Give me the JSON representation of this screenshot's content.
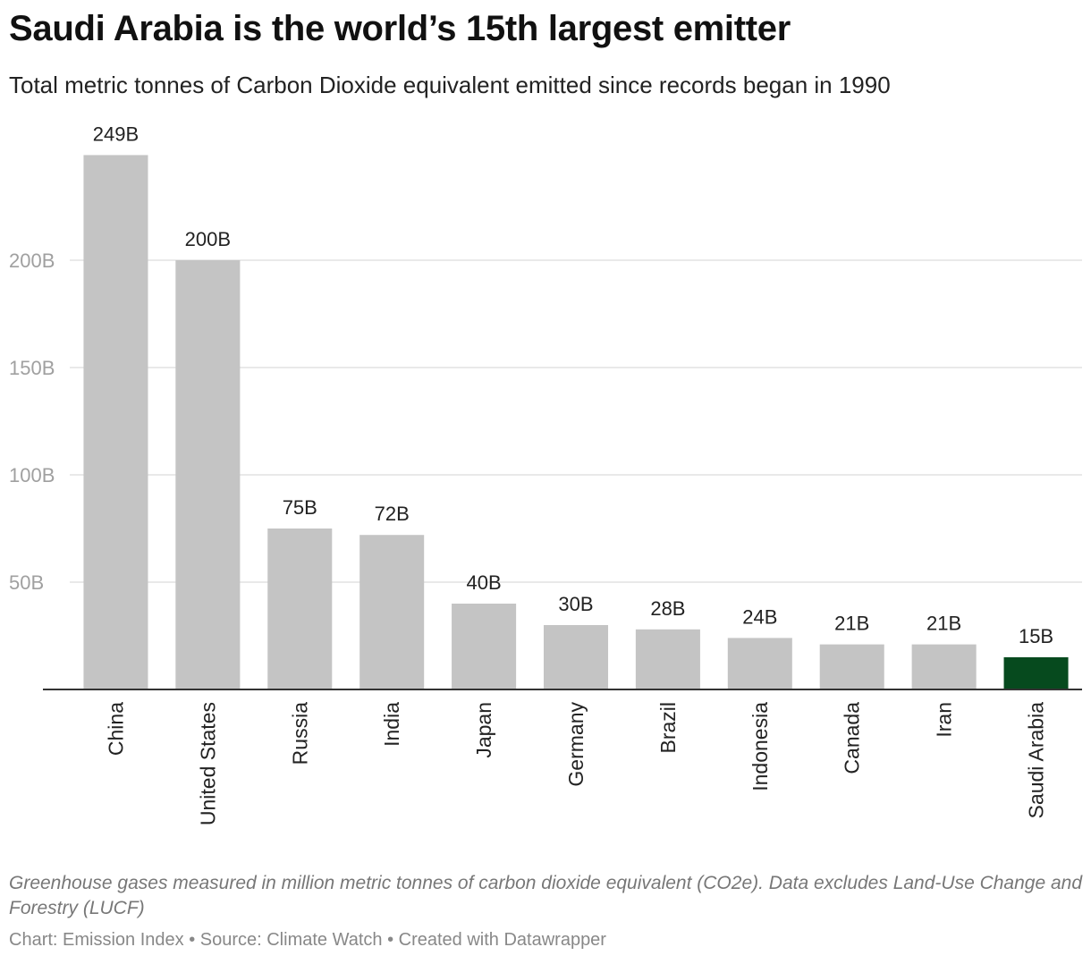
{
  "header": {
    "title": "Saudi Arabia is the world’s 15th largest emitter",
    "subtitle": "Total metric tonnes of Carbon Dioxide equivalent emitted since records began in 1990"
  },
  "footer": {
    "note": "Greenhouse gases measured in million metric tonnes of carbon dioxide equivalent (CO2e). Data excludes Land-Use Change and Forestry (LUCF)",
    "credit": "Chart: Emission Index • Source: Climate Watch • Created with Datawrapper"
  },
  "chart_data": {
    "type": "bar",
    "categories": [
      "China",
      "United States",
      "Russia",
      "India",
      "Japan",
      "Germany",
      "Brazil",
      "Indonesia",
      "Canada",
      "Iran",
      "Saudi Arabia"
    ],
    "values": [
      249,
      200,
      75,
      72,
      40,
      30,
      28,
      24,
      21,
      21,
      15
    ],
    "data_labels": [
      "249B",
      "200B",
      "75B",
      "72B",
      "40B",
      "30B",
      "28B",
      "24B",
      "21B",
      "21B",
      "15B"
    ],
    "unit": "B",
    "ylim": [
      0,
      250
    ],
    "yticks": [
      50,
      100,
      150,
      200
    ],
    "ytick_labels": [
      "50B",
      "100B",
      "150B",
      "200B"
    ],
    "grid": true,
    "legend": "none",
    "colors": {
      "default_bar": "#c4c4c4",
      "highlight_bar": "#064a1e",
      "gridline": "#e2e2e2",
      "axis": "#333333",
      "tick_label": "#a0a0a0"
    },
    "highlight_category": "Saudi Arabia"
  }
}
